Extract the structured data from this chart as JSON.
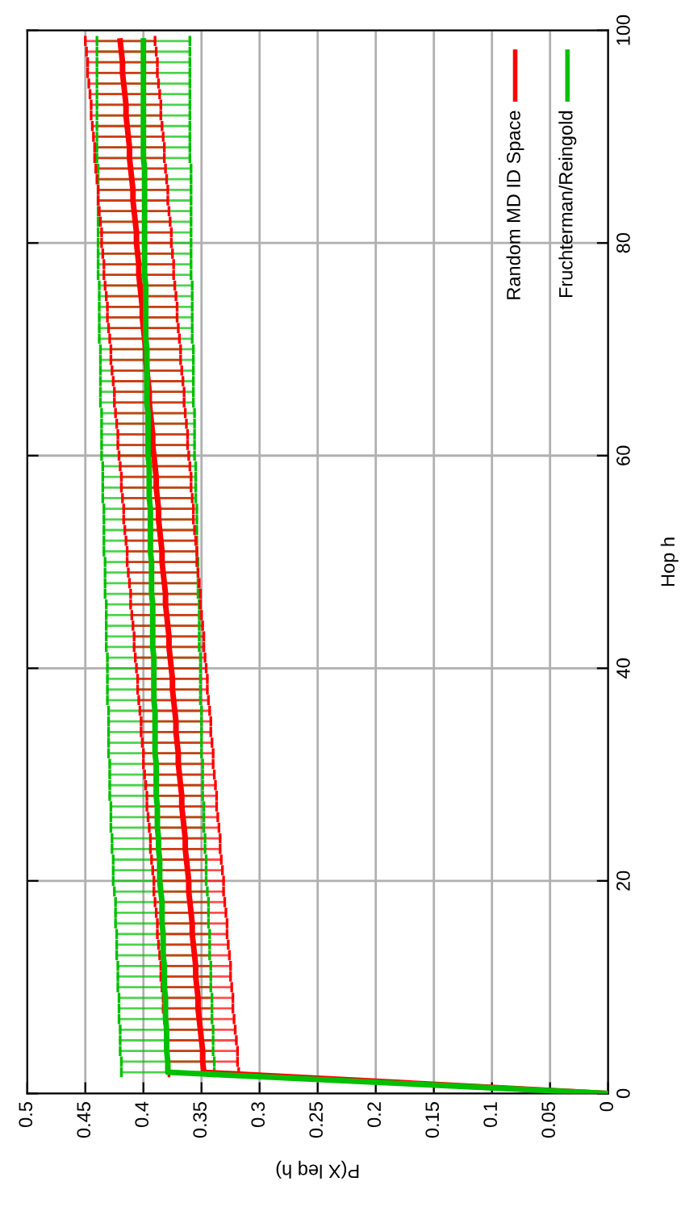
{
  "chart_data": {
    "type": "line",
    "xlabel": "P(X leq h)",
    "ylabel": "Hop h",
    "xlim": [
      0.5,
      0
    ],
    "xticks": [
      0,
      0.05,
      0.1,
      0.15,
      0.2,
      0.25,
      0.3,
      0.35,
      0.4,
      0.45,
      0.5
    ],
    "ylim": [
      0,
      100
    ],
    "yticks": [
      0,
      20,
      40,
      60,
      80,
      100
    ],
    "grid": true,
    "legend": "top right",
    "series": [
      {
        "name": "Random MD ID Space",
        "color": "#ff0000",
        "values": [
          0,
          2,
          3,
          4,
          5,
          6,
          7,
          8,
          9,
          10,
          11,
          12,
          13,
          14,
          15,
          16,
          17,
          18,
          19,
          20,
          21,
          22,
          23,
          24,
          25,
          26,
          27,
          28,
          29,
          30,
          31,
          32,
          33,
          34,
          35,
          36,
          37,
          38,
          39,
          40,
          41,
          42,
          43,
          44,
          45,
          46,
          47,
          48,
          49,
          50,
          51,
          52,
          53,
          54,
          55,
          56,
          57,
          58,
          59,
          60,
          61,
          62,
          63,
          64,
          65,
          66,
          67,
          68,
          69,
          70,
          71,
          72,
          73,
          74,
          75,
          76,
          77,
          78,
          79,
          80,
          81,
          82,
          83,
          84,
          85,
          86,
          87,
          88,
          89,
          90,
          91,
          92,
          93,
          94,
          95,
          96,
          97,
          98,
          99
        ],
        "x": [
          0,
          0.348,
          0.349,
          0.349,
          0.35,
          0.351,
          0.352,
          0.353,
          0.353,
          0.354,
          0.355,
          0.355,
          0.356,
          0.357,
          0.358,
          0.358,
          0.359,
          0.36,
          0.361,
          0.361,
          0.362,
          0.363,
          0.364,
          0.364,
          0.365,
          0.366,
          0.367,
          0.367,
          0.368,
          0.369,
          0.37,
          0.37,
          0.371,
          0.372,
          0.372,
          0.373,
          0.374,
          0.375,
          0.375,
          0.376,
          0.377,
          0.378,
          0.378,
          0.379,
          0.38,
          0.381,
          0.381,
          0.382,
          0.383,
          0.384,
          0.384,
          0.385,
          0.386,
          0.387,
          0.387,
          0.388,
          0.389,
          0.389,
          0.39,
          0.391,
          0.392,
          0.392,
          0.393,
          0.394,
          0.395,
          0.395,
          0.396,
          0.397,
          0.398,
          0.398,
          0.399,
          0.4,
          0.401,
          0.401,
          0.402,
          0.403,
          0.404,
          0.404,
          0.405,
          0.406,
          0.406,
          0.407,
          0.408,
          0.409,
          0.409,
          0.41,
          0.411,
          0.412,
          0.412,
          0.413,
          0.414,
          0.415,
          0.415,
          0.416,
          0.417,
          0.418,
          0.418,
          0.419,
          0.42
        ],
        "xerrors": [
          null,
          0.03,
          0.03,
          0.03,
          0.03,
          0.03,
          0.03,
          0.03,
          0.03,
          0.03,
          0.03,
          0.03,
          0.03,
          0.03,
          0.03,
          0.03,
          0.03,
          0.03,
          0.03,
          0.03,
          0.03,
          0.03,
          0.03,
          0.03,
          0.03,
          0.03,
          0.03,
          0.03,
          0.03,
          0.03,
          0.03,
          0.03,
          0.03,
          0.03,
          0.03,
          0.03,
          0.03,
          0.03,
          0.03,
          0.03,
          0.03,
          0.03,
          0.03,
          0.03,
          0.03,
          0.03,
          0.03,
          0.03,
          0.03,
          0.03,
          0.03,
          0.03,
          0.03,
          0.03,
          0.03,
          0.03,
          0.03,
          0.03,
          0.03,
          0.03,
          0.03,
          0.03,
          0.03,
          0.03,
          0.03,
          0.03,
          0.03,
          0.03,
          0.03,
          0.03,
          0.03,
          0.03,
          0.03,
          0.03,
          0.03,
          0.03,
          0.03,
          0.03,
          0.03,
          0.03,
          0.03,
          0.03,
          0.03,
          0.03,
          0.03,
          0.03,
          0.03,
          0.03,
          0.03,
          0.03,
          0.03,
          0.03,
          0.03,
          0.03,
          0.03,
          0.03,
          0.03,
          0.03,
          0.03
        ]
      },
      {
        "name": "Fruchterman/Reingold",
        "color": "#00c000",
        "values": [
          0,
          2,
          3,
          4,
          5,
          6,
          7,
          8,
          9,
          10,
          11,
          12,
          13,
          14,
          15,
          16,
          17,
          18,
          19,
          20,
          21,
          22,
          23,
          24,
          25,
          26,
          27,
          28,
          29,
          30,
          31,
          32,
          33,
          34,
          35,
          36,
          37,
          38,
          39,
          40,
          41,
          42,
          43,
          44,
          45,
          46,
          47,
          48,
          49,
          50,
          51,
          52,
          53,
          54,
          55,
          56,
          57,
          58,
          59,
          60,
          61,
          62,
          63,
          64,
          65,
          66,
          67,
          68,
          69,
          70,
          71,
          72,
          73,
          74,
          75,
          76,
          77,
          78,
          79,
          80,
          81,
          82,
          83,
          84,
          85,
          86,
          87,
          88,
          89,
          90,
          91,
          92,
          93,
          94,
          95,
          96,
          97,
          98,
          99
        ],
        "x": [
          0,
          0.379,
          0.379,
          0.38,
          0.38,
          0.38,
          0.381,
          0.381,
          0.381,
          0.382,
          0.382,
          0.382,
          0.383,
          0.383,
          0.383,
          0.384,
          0.384,
          0.384,
          0.385,
          0.386,
          0.386,
          0.386,
          0.387,
          0.387,
          0.388,
          0.388,
          0.388,
          0.389,
          0.389,
          0.389,
          0.389,
          0.39,
          0.39,
          0.39,
          0.39,
          0.39,
          0.391,
          0.391,
          0.391,
          0.391,
          0.391,
          0.392,
          0.392,
          0.392,
          0.392,
          0.392,
          0.393,
          0.393,
          0.393,
          0.393,
          0.394,
          0.394,
          0.394,
          0.394,
          0.394,
          0.395,
          0.395,
          0.395,
          0.395,
          0.396,
          0.396,
          0.396,
          0.396,
          0.396,
          0.397,
          0.397,
          0.397,
          0.397,
          0.397,
          0.397,
          0.398,
          0.398,
          0.398,
          0.398,
          0.398,
          0.398,
          0.399,
          0.399,
          0.399,
          0.399,
          0.399,
          0.399,
          0.399,
          0.399,
          0.399,
          0.399,
          0.399,
          0.4,
          0.4,
          0.4,
          0.4,
          0.4,
          0.4,
          0.4,
          0.4,
          0.4,
          0.4,
          0.4,
          0.4
        ],
        "xerrors": [
          null,
          0.04,
          0.04,
          0.04,
          0.04,
          0.04,
          0.04,
          0.04,
          0.04,
          0.04,
          0.04,
          0.04,
          0.04,
          0.04,
          0.04,
          0.04,
          0.04,
          0.04,
          0.04,
          0.04,
          0.04,
          0.04,
          0.04,
          0.04,
          0.04,
          0.04,
          0.04,
          0.04,
          0.04,
          0.04,
          0.04,
          0.04,
          0.04,
          0.04,
          0.04,
          0.04,
          0.04,
          0.04,
          0.04,
          0.04,
          0.04,
          0.04,
          0.04,
          0.04,
          0.04,
          0.04,
          0.04,
          0.04,
          0.04,
          0.04,
          0.04,
          0.04,
          0.04,
          0.04,
          0.04,
          0.04,
          0.04,
          0.04,
          0.04,
          0.04,
          0.04,
          0.04,
          0.04,
          0.04,
          0.04,
          0.04,
          0.04,
          0.04,
          0.04,
          0.04,
          0.04,
          0.04,
          0.04,
          0.04,
          0.04,
          0.04,
          0.04,
          0.04,
          0.04,
          0.04,
          0.04,
          0.04,
          0.04,
          0.04,
          0.04,
          0.04,
          0.04,
          0.04,
          0.04,
          0.04,
          0.04,
          0.04,
          0.04,
          0.04,
          0.04,
          0.04,
          0.04,
          0.04,
          0.04
        ]
      }
    ]
  }
}
